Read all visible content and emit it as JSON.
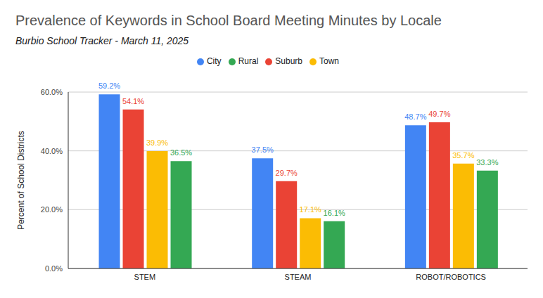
{
  "chart_data": {
    "type": "bar",
    "title": "Prevalence of Keywords in School Board Meeting Minutes by Locale",
    "subtitle": "Burbio School Tracker - March 11, 2025",
    "y_label": "Percent of School Districts",
    "categories": [
      "STEM",
      "STEAM",
      "ROBOT/ROBOTICS"
    ],
    "series": [
      {
        "name": "City",
        "color": "#4285f4",
        "values": [
          59.2,
          37.5,
          48.7
        ],
        "value_labels": [
          "59.2%",
          "37.5%",
          "48.7%"
        ]
      },
      {
        "name": "Suburb",
        "color": "#ea4335",
        "values": [
          54.1,
          29.7,
          49.7
        ],
        "value_labels": [
          "54.1%",
          "29.7%",
          "49.7%"
        ]
      },
      {
        "name": "Town",
        "color": "#fbbc04",
        "values": [
          39.9,
          17.1,
          35.7
        ],
        "value_labels": [
          "39.9%",
          "17.1%",
          "35.7%"
        ]
      },
      {
        "name": "Rural",
        "color": "#34a853",
        "values": [
          36.5,
          16.1,
          33.3
        ],
        "value_labels": [
          "36.5%",
          "16.1%",
          "33.3%"
        ]
      }
    ],
    "ylim": [
      0,
      60
    ],
    "yticks": [
      {
        "value": 0,
        "label": "0.0%"
      },
      {
        "value": 20,
        "label": "20.0%"
      },
      {
        "value": 40,
        "label": "40.0%"
      },
      {
        "value": 60,
        "label": "60.0%"
      }
    ],
    "grid": true,
    "legend": "top",
    "data_labels": true
  }
}
